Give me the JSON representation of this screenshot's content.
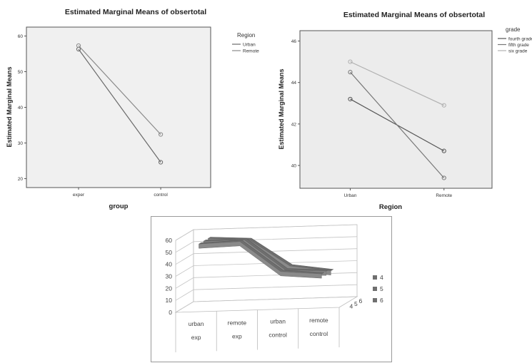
{
  "chart_data": [
    {
      "type": "line",
      "title": "Estimated Marginal Means of obsertotal",
      "xlabel": "group",
      "ylabel": "Estimated Marginal Means",
      "categories": [
        "exper",
        "control"
      ],
      "yticks": [
        "20",
        "30",
        "40",
        "50",
        "60"
      ],
      "ylim": [
        17.5,
        62.5
      ],
      "legend_title": "Region",
      "legend_position": "right",
      "grid": false,
      "series": [
        {
          "name": "Urban",
          "values": [
            56.3,
            24.6
          ],
          "color": "#6a6a6a"
        },
        {
          "name": "Remote",
          "values": [
            57.3,
            32.4
          ],
          "color": "#8a8a8a"
        }
      ]
    },
    {
      "type": "line",
      "title": "Estimated Marginal Means of obsertotal",
      "xlabel": "Region",
      "ylabel": "Estimated Marginal Means",
      "categories": [
        "Urban",
        "Remote"
      ],
      "yticks": [
        "40",
        "42",
        "44",
        "46"
      ],
      "ylim": [
        38.9,
        46.5
      ],
      "legend_title": "grade",
      "legend_position": "right",
      "grid": false,
      "series": [
        {
          "name": "fourth grade",
          "values": [
            43.2,
            40.7
          ],
          "color": "#555555"
        },
        {
          "name": "fifth grade",
          "values": [
            44.5,
            39.4
          ],
          "color": "#777777"
        },
        {
          "name": "six grade",
          "values": [
            45.0,
            42.9
          ],
          "color": "#b0b0b0"
        }
      ]
    },
    {
      "type": "line",
      "subtype": "3d-ribbon",
      "categories": [
        [
          "urban",
          "exp"
        ],
        [
          "remote",
          "exp"
        ],
        [
          "urban",
          "control"
        ],
        [
          "remote",
          "control"
        ]
      ],
      "yticks": [
        "0",
        "10",
        "20",
        "30",
        "40",
        "50",
        "60"
      ],
      "ylim": [
        0,
        60
      ],
      "depth_ticks": [
        "4",
        "5",
        "6"
      ],
      "legend_position": "right",
      "grid": true,
      "series": [
        {
          "name": "4",
          "values": [
            55,
            56,
            30,
            27
          ],
          "color": "#6f6f6f"
        },
        {
          "name": "5",
          "values": [
            55,
            55,
            29,
            27
          ],
          "color": "#6f6f6f"
        },
        {
          "name": "6",
          "values": [
            55,
            53,
            30,
            25
          ],
          "color": "#6f6f6f"
        }
      ]
    }
  ]
}
